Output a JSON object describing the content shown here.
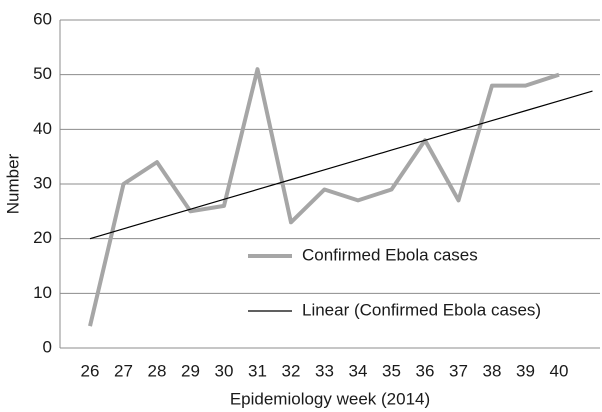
{
  "chart_data": {
    "type": "line",
    "x_label": "Epidemiology week (2014)",
    "y_label": "Number",
    "categories": [
      "26",
      "27",
      "28",
      "29",
      "30",
      "31",
      "32",
      "33",
      "34",
      "35",
      "36",
      "37",
      "38",
      "39",
      "40",
      null
    ],
    "series": [
      {
        "name": "Confirmed Ebola cases",
        "color": "#a6a6a6",
        "values": [
          4,
          30,
          34,
          25,
          26,
          51,
          23,
          29,
          27,
          29,
          38,
          27,
          48,
          48,
          50,
          null
        ]
      },
      {
        "name": "Linear (Confirmed Ebola cases)",
        "color": "#000000",
        "values": [
          20,
          21.8,
          23.6,
          25.4,
          27.2,
          29,
          30.8,
          32.6,
          34.4,
          36.2,
          38,
          39.8,
          41.6,
          43.4,
          45.2,
          47
        ]
      }
    ],
    "ylim": [
      0,
      60
    ],
    "yticks": [
      0,
      10,
      20,
      30,
      40,
      50,
      60
    ],
    "grid": true
  }
}
